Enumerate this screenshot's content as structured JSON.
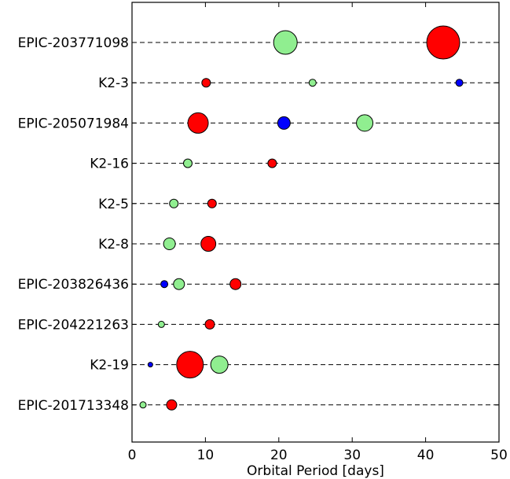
{
  "chart_data": {
    "type": "scatter",
    "xlabel": "Orbital Period [days]",
    "ylabel": "",
    "xlim": [
      0,
      50
    ],
    "xticks": [
      "0",
      "10",
      "20",
      "30",
      "40",
      "50"
    ],
    "grid": "dashed horizontal guide line per system",
    "legend": "none",
    "colors": {
      "red": "#ff0000",
      "green": "#90ee90",
      "blue": "#0000ff",
      "edge": "#000000"
    },
    "systems": [
      {
        "name": "EPIC-203771098",
        "planets": [
          {
            "period": 20.9,
            "color": "green",
            "size": 15
          },
          {
            "period": 42.4,
            "color": "red",
            "size": 21
          }
        ]
      },
      {
        "name": "K2-3",
        "planets": [
          {
            "period": 10.1,
            "color": "red",
            "size": 5.5
          },
          {
            "period": 24.6,
            "color": "green",
            "size": 4.5
          },
          {
            "period": 44.6,
            "color": "blue",
            "size": 4.5
          }
        ]
      },
      {
        "name": "EPIC-205071984",
        "planets": [
          {
            "period": 9.0,
            "color": "red",
            "size": 13
          },
          {
            "period": 20.7,
            "color": "blue",
            "size": 8
          },
          {
            "period": 31.7,
            "color": "green",
            "size": 10.5
          }
        ]
      },
      {
        "name": "K2-16",
        "planets": [
          {
            "period": 7.6,
            "color": "green",
            "size": 5.5
          },
          {
            "period": 19.1,
            "color": "red",
            "size": 5.5
          }
        ]
      },
      {
        "name": "K2-5",
        "planets": [
          {
            "period": 5.7,
            "color": "green",
            "size": 5.5
          },
          {
            "period": 10.9,
            "color": "red",
            "size": 5.5
          }
        ]
      },
      {
        "name": "K2-8",
        "planets": [
          {
            "period": 5.1,
            "color": "green",
            "size": 7.5
          },
          {
            "period": 10.4,
            "color": "red",
            "size": 9.5
          }
        ]
      },
      {
        "name": "EPIC-203826436",
        "planets": [
          {
            "period": 4.4,
            "color": "blue",
            "size": 4.5
          },
          {
            "period": 6.4,
            "color": "green",
            "size": 7
          },
          {
            "period": 14.1,
            "color": "red",
            "size": 7
          }
        ]
      },
      {
        "name": "EPIC-204221263",
        "planets": [
          {
            "period": 4.0,
            "color": "green",
            "size": 4
          },
          {
            "period": 10.6,
            "color": "red",
            "size": 6
          }
        ]
      },
      {
        "name": "K2-19",
        "planets": [
          {
            "period": 2.5,
            "color": "blue",
            "size": 3
          },
          {
            "period": 7.9,
            "color": "red",
            "size": 17
          },
          {
            "period": 11.9,
            "color": "green",
            "size": 11
          }
        ]
      },
      {
        "name": "EPIC-201713348",
        "planets": [
          {
            "period": 1.5,
            "color": "green",
            "size": 4
          },
          {
            "period": 5.4,
            "color": "red",
            "size": 6.5
          }
        ]
      }
    ]
  }
}
